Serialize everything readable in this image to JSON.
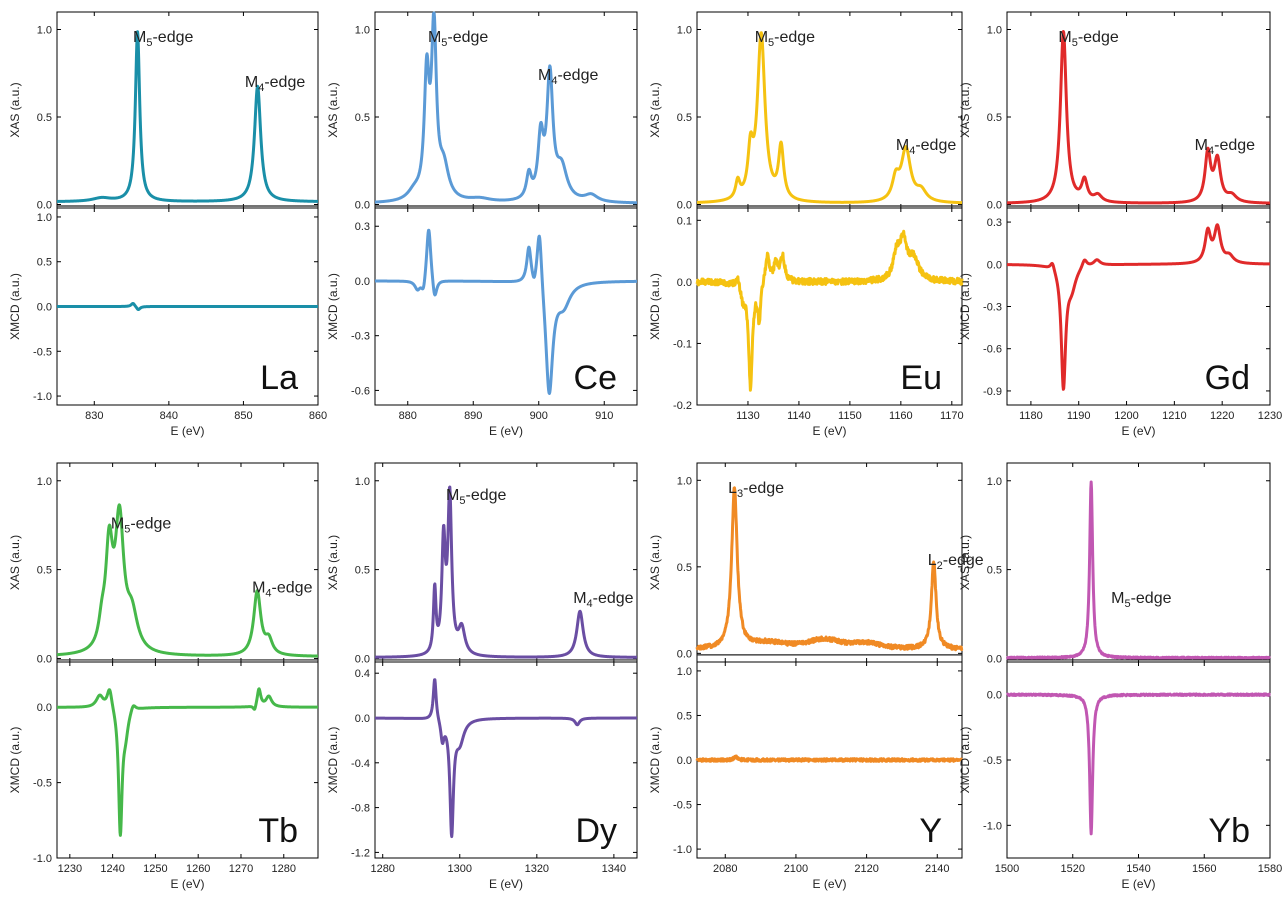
{
  "figure": {
    "colors": {
      "La": "#1a8fa8",
      "Ce": "#5b9ad6",
      "Eu": "#f5c211",
      "Gd": "#e02a2a",
      "Tb": "#46b84a",
      "Dy": "#6a4ea3",
      "Y": "#f08a24",
      "Yb": "#c157b2"
    }
  },
  "chart_data": [
    {
      "type": "line",
      "element": "La",
      "xlabel": "E (eV)",
      "xlim": [
        825,
        860
      ],
      "xticks": [
        830,
        840,
        850,
        860
      ],
      "xas": {
        "ylabel": "XAS (a.u.)",
        "ylim": [
          -0.02,
          1.1
        ],
        "yticks": [
          0.0,
          0.5,
          1.0
        ],
        "edges": [
          {
            "label": "M",
            "sub": "5",
            "suffix": "-edge",
            "x": 836
          },
          {
            "label": "M",
            "sub": "4",
            "suffix": "-edge",
            "x": 851
          }
        ],
        "peaks": [
          {
            "x": 835.8,
            "h": 0.97,
            "w": 0.35
          },
          {
            "x": 851.9,
            "h": 0.66,
            "w": 0.5
          },
          {
            "x": 831,
            "h": 0.02,
            "w": 1.5
          }
        ],
        "baseline": 0.015
      },
      "xmcd": {
        "ylabel": "XMCD (a.u.)",
        "ylim": [
          -1.1,
          1.1
        ],
        "yticks": [
          -1.0,
          -0.5,
          0.0,
          0.5,
          1.0
        ],
        "peaks": [
          {
            "x": 835.2,
            "h": 0.04,
            "w": 0.3
          },
          {
            "x": 835.9,
            "h": -0.04,
            "w": 0.3
          }
        ]
      }
    },
    {
      "type": "line",
      "element": "Ce",
      "xlabel": "E (eV)",
      "xlim": [
        875,
        915
      ],
      "xticks": [
        880,
        890,
        900,
        910
      ],
      "xas": {
        "ylabel": "XAS (a.u.)",
        "ylim": [
          -0.02,
          1.1
        ],
        "yticks": [
          0.0,
          0.5,
          1.0
        ],
        "edges": [
          {
            "label": "M",
            "sub": "5",
            "suffix": "-edge",
            "x": 884
          },
          {
            "label": "M",
            "sub": "4",
            "suffix": "-edge",
            "x": 900.8
          }
        ],
        "peaks": [
          {
            "x": 882.9,
            "h": 0.68,
            "w": 0.45
          },
          {
            "x": 884.0,
            "h": 0.95,
            "w": 0.45
          },
          {
            "x": 885.5,
            "h": 0.18,
            "w": 0.9
          },
          {
            "x": 881,
            "h": 0.05,
            "w": 1.2
          },
          {
            "x": 898.5,
            "h": 0.14,
            "w": 0.45
          },
          {
            "x": 900.3,
            "h": 0.34,
            "w": 0.5
          },
          {
            "x": 901.7,
            "h": 0.7,
            "w": 0.55
          },
          {
            "x": 903.5,
            "h": 0.18,
            "w": 1.0
          },
          {
            "x": 908,
            "h": 0.04,
            "w": 1.2
          },
          {
            "x": 891,
            "h": 0.02,
            "w": 2.0
          }
        ],
        "baseline": 0.005
      },
      "xmcd": {
        "ylabel": "XMCD (a.u.)",
        "ylim": [
          -0.68,
          0.4
        ],
        "yticks": [
          -0.6,
          -0.3,
          0.0,
          0.3
        ],
        "peaks": [
          {
            "x": 883.2,
            "h": 0.32,
            "w": 0.4
          },
          {
            "x": 884.1,
            "h": -0.12,
            "w": 0.4
          },
          {
            "x": 881.5,
            "h": -0.05,
            "w": 0.5
          },
          {
            "x": 882.4,
            "h": -0.08,
            "w": 0.4
          },
          {
            "x": 898.5,
            "h": 0.2,
            "w": 0.4
          },
          {
            "x": 899.3,
            "h": -0.05,
            "w": 0.35
          },
          {
            "x": 900.1,
            "h": 0.35,
            "w": 0.45
          },
          {
            "x": 901.6,
            "h": -0.62,
            "w": 0.65
          },
          {
            "x": 903.8,
            "h": -0.12,
            "w": 1.2
          }
        ]
      }
    },
    {
      "type": "line",
      "element": "Eu",
      "xlabel": "E (eV)",
      "xlim": [
        1120,
        1172
      ],
      "xticks": [
        1130,
        1140,
        1150,
        1160,
        1170
      ],
      "xas": {
        "ylabel": "XAS (a.u.)",
        "ylim": [
          -0.02,
          1.1
        ],
        "yticks": [
          0.0,
          0.5,
          1.0
        ],
        "edges": [
          {
            "label": "M",
            "sub": "5",
            "suffix": "-edge",
            "x": 1132.5
          },
          {
            "label": "M",
            "sub": "4",
            "suffix": "-edge",
            "x": 1160.2
          }
        ],
        "peaks": [
          {
            "x": 1132.6,
            "h": 0.95,
            "w": 0.9
          },
          {
            "x": 1130.5,
            "h": 0.25,
            "w": 0.6
          },
          {
            "x": 1128,
            "h": 0.1,
            "w": 0.5
          },
          {
            "x": 1136.5,
            "h": 0.3,
            "w": 0.6
          },
          {
            "x": 1159,
            "h": 0.12,
            "w": 0.8
          },
          {
            "x": 1161,
            "h": 0.3,
            "w": 1.1
          },
          {
            "x": 1164,
            "h": 0.06,
            "w": 1.2
          }
        ],
        "baseline": 0.005
      },
      "xmcd": {
        "ylabel": "XMCD (a.u.)",
        "ylim": [
          -0.2,
          0.12
        ],
        "yticks": [
          -0.2,
          -0.1,
          0.0,
          0.1
        ],
        "noise": 0.005,
        "peaks": [
          {
            "x": 1128,
            "h": 0.015,
            "w": 0.4
          },
          {
            "x": 1129,
            "h": -0.025,
            "w": 0.5
          },
          {
            "x": 1130.5,
            "h": -0.17,
            "w": 0.45
          },
          {
            "x": 1132.2,
            "h": -0.06,
            "w": 0.35
          },
          {
            "x": 1133.8,
            "h": 0.045,
            "w": 0.5
          },
          {
            "x": 1135.5,
            "h": 0.03,
            "w": 0.5
          },
          {
            "x": 1136.8,
            "h": 0.04,
            "w": 0.5
          },
          {
            "x": 1159.2,
            "h": 0.04,
            "w": 0.8
          },
          {
            "x": 1160.5,
            "h": 0.06,
            "w": 0.8
          },
          {
            "x": 1162.5,
            "h": 0.035,
            "w": 1.2
          }
        ]
      }
    },
    {
      "type": "line",
      "element": "Gd",
      "xlabel": "E (eV)",
      "xlim": [
        1175,
        1230
      ],
      "xticks": [
        1180,
        1190,
        1200,
        1210,
        1220,
        1230
      ],
      "xas": {
        "ylabel": "XAS (a.u.)",
        "ylim": [
          -0.02,
          1.1
        ],
        "yticks": [
          0.0,
          0.5,
          1.0
        ],
        "edges": [
          {
            "label": "M",
            "sub": "5",
            "suffix": "-edge",
            "x": 1187
          },
          {
            "label": "M",
            "sub": "4",
            "suffix": "-edge",
            "x": 1215.5
          }
        ],
        "peaks": [
          {
            "x": 1186.8,
            "h": 0.98,
            "w": 0.75
          },
          {
            "x": 1191.2,
            "h": 0.12,
            "w": 0.7
          },
          {
            "x": 1194,
            "h": 0.04,
            "w": 1.0
          },
          {
            "x": 1217,
            "h": 0.28,
            "w": 0.7
          },
          {
            "x": 1219,
            "h": 0.24,
            "w": 0.8
          },
          {
            "x": 1222,
            "h": 0.04,
            "w": 1.2
          }
        ],
        "baseline": 0.005
      },
      "xmcd": {
        "ylabel": "XMCD (a.u.)",
        "ylim": [
          -1.0,
          0.4
        ],
        "yticks": [
          -0.9,
          -0.6,
          -0.3,
          0.0,
          0.3
        ],
        "peaks": [
          {
            "x": 1184.5,
            "h": 0.06,
            "w": 0.5
          },
          {
            "x": 1186.8,
            "h": -0.85,
            "w": 0.55
          },
          {
            "x": 1188.5,
            "h": -0.15,
            "w": 1.1
          },
          {
            "x": 1191.2,
            "h": 0.06,
            "w": 0.6
          },
          {
            "x": 1193.8,
            "h": 0.04,
            "w": 0.8
          },
          {
            "x": 1217,
            "h": 0.22,
            "w": 0.7
          },
          {
            "x": 1219,
            "h": 0.25,
            "w": 0.8
          },
          {
            "x": 1221.5,
            "h": 0.05,
            "w": 1.0
          }
        ]
      }
    },
    {
      "type": "line",
      "element": "Tb",
      "xlabel": "E (eV)",
      "xlim": [
        1227,
        1288
      ],
      "xticks": [
        1230,
        1240,
        1250,
        1260,
        1270,
        1280
      ],
      "xas": {
        "ylabel": "XAS (a.u.)",
        "ylim": [
          -0.02,
          1.1
        ],
        "yticks": [
          0.0,
          0.5,
          1.0
        ],
        "edges": [
          {
            "label": "M",
            "sub": "5",
            "suffix": "-edge",
            "x": 1241
          },
          {
            "label": "M",
            "sub": "4",
            "suffix": "-edge",
            "x": 1274
          }
        ],
        "peaks": [
          {
            "x": 1239.2,
            "h": 0.55,
            "w": 1.0
          },
          {
            "x": 1241.6,
            "h": 0.72,
            "w": 1.2
          },
          {
            "x": 1244.5,
            "h": 0.2,
            "w": 1.6
          },
          {
            "x": 1237.5,
            "h": 0.12,
            "w": 0.9
          },
          {
            "x": 1273.8,
            "h": 0.36,
            "w": 1.0
          },
          {
            "x": 1276.5,
            "h": 0.08,
            "w": 1.0
          }
        ],
        "baseline": 0.01
      },
      "xmcd": {
        "ylabel": "XMCD (a.u.)",
        "ylim": [
          -1.0,
          0.3
        ],
        "yticks": [
          -1.0,
          -0.5,
          0.0
        ],
        "peaks": [
          {
            "x": 1237,
            "h": 0.08,
            "w": 1.0
          },
          {
            "x": 1239.3,
            "h": 0.14,
            "w": 0.7
          },
          {
            "x": 1241.8,
            "h": -0.82,
            "w": 0.5
          },
          {
            "x": 1243,
            "h": -0.15,
            "w": 0.8
          },
          {
            "x": 1244.8,
            "h": 0.05,
            "w": 0.7
          },
          {
            "x": 1273.2,
            "h": -0.04,
            "w": 0.4
          },
          {
            "x": 1274.2,
            "h": 0.12,
            "w": 0.5
          },
          {
            "x": 1276.5,
            "h": 0.07,
            "w": 0.8
          }
        ]
      }
    },
    {
      "type": "line",
      "element": "Dy",
      "xlabel": "E (eV)",
      "xlim": [
        1278,
        1346
      ],
      "xticks": [
        1280,
        1300,
        1320,
        1340
      ],
      "xas": {
        "ylabel": "XAS (a.u.)",
        "ylim": [
          -0.02,
          1.1
        ],
        "yticks": [
          0.0,
          0.5,
          1.0
        ],
        "edges": [
          {
            "label": "M",
            "sub": "5",
            "suffix": "-edge",
            "x": 1298
          },
          {
            "label": "M",
            "sub": "4",
            "suffix": "-edge",
            "x": 1331
          }
        ],
        "peaks": [
          {
            "x": 1293.5,
            "h": 0.36,
            "w": 0.4
          },
          {
            "x": 1295.8,
            "h": 0.62,
            "w": 0.55
          },
          {
            "x": 1297.4,
            "h": 0.88,
            "w": 0.6
          },
          {
            "x": 1300.5,
            "h": 0.15,
            "w": 1.0
          },
          {
            "x": 1331.2,
            "h": 0.26,
            "w": 1.0
          }
        ],
        "baseline": 0.005
      },
      "xmcd": {
        "ylabel": "XMCD (a.u.)",
        "ylim": [
          -1.25,
          0.5
        ],
        "yticks": [
          -1.2,
          -0.8,
          -0.4,
          0.0,
          0.4
        ],
        "peaks": [
          {
            "x": 1293.5,
            "h": 0.38,
            "w": 0.45
          },
          {
            "x": 1295.5,
            "h": -0.18,
            "w": 0.5
          },
          {
            "x": 1297.9,
            "h": -1.0,
            "w": 0.55
          },
          {
            "x": 1300,
            "h": -0.2,
            "w": 1.3
          },
          {
            "x": 1330.5,
            "h": -0.06,
            "w": 0.7
          }
        ]
      }
    },
    {
      "type": "line",
      "element": "Y",
      "xlabel": "E (eV)",
      "xlim": [
        2072,
        2147
      ],
      "xticks": [
        2080,
        2100,
        2120,
        2140
      ],
      "xas": {
        "ylabel": "XAS (a.u.)",
        "ylim": [
          -0.05,
          1.1
        ],
        "yticks": [
          0.0,
          0.5,
          1.0
        ],
        "edges": [
          {
            "label": "L",
            "sub": "3",
            "suffix": "-edge",
            "x": 2082.5
          },
          {
            "label": "L",
            "sub": "2",
            "suffix": "-edge",
            "x": 2139
          }
        ],
        "noise": 0.012,
        "peaks": [
          {
            "x": 2082.6,
            "h": 0.92,
            "w": 0.95
          },
          {
            "x": 2139,
            "h": 0.5,
            "w": 0.8
          },
          {
            "x": 2092,
            "h": 0.035,
            "w": 6.0
          },
          {
            "x": 2108,
            "h": 0.055,
            "w": 6.0
          },
          {
            "x": 2120,
            "h": 0.03,
            "w": 5.0
          }
        ],
        "baseline": 0.02
      },
      "xmcd": {
        "ylabel": "XMCD (a.u.)",
        "ylim": [
          -1.1,
          1.1
        ],
        "yticks": [
          -1.0,
          -0.5,
          0.0,
          0.5,
          1.0
        ],
        "noise": 0.015,
        "peaks": [
          {
            "x": 2083,
            "h": 0.04,
            "w": 0.6
          }
        ]
      }
    },
    {
      "type": "line",
      "element": "Yb",
      "xlabel": "E (eV)",
      "xlim": [
        1500,
        1580
      ],
      "xticks": [
        1500,
        1520,
        1540,
        1560,
        1580
      ],
      "xas": {
        "ylabel": "XAS (a.u.)",
        "ylim": [
          -0.02,
          1.1
        ],
        "yticks": [
          0.0,
          0.5,
          1.0
        ],
        "edges": [
          {
            "label": "M",
            "sub": "5",
            "suffix": "-edge",
            "x": 1533.5
          }
        ],
        "noise": 0.004,
        "peaks": [
          {
            "x": 1525.6,
            "h": 0.99,
            "w": 0.55
          }
        ],
        "baseline": 0.003
      },
      "xmcd": {
        "ylabel": "XMCD (a.u.)",
        "ylim": [
          -1.25,
          0.25
        ],
        "yticks": [
          -1.0,
          -0.5,
          0.0
        ],
        "noise": 0.006,
        "peaks": [
          {
            "x": 1525.6,
            "h": -1.06,
            "w": 0.55
          }
        ]
      }
    }
  ]
}
